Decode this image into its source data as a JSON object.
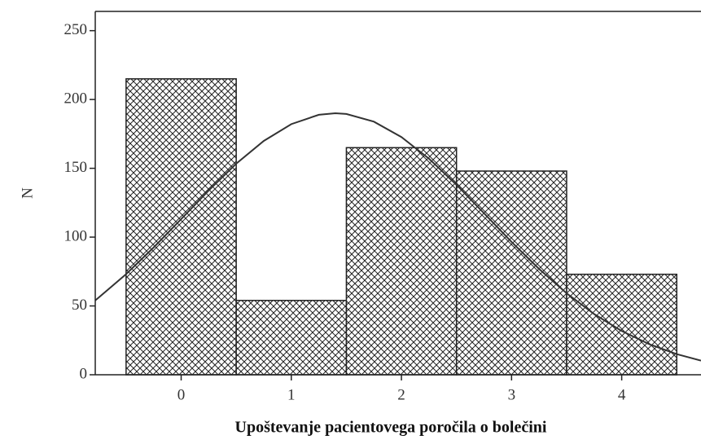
{
  "chart_data": {
    "type": "histogram",
    "xlabel": "Upoštevanje pacientovega poročila o bolečini",
    "ylabel": "N",
    "bins": [
      -0.5,
      0.5,
      1.5,
      2.5,
      3.5,
      4.5
    ],
    "values": [
      215,
      54,
      165,
      148,
      73
    ],
    "xlim": [
      -0.78,
      4.72
    ],
    "xticks": [
      0,
      1,
      2,
      3,
      4
    ],
    "ylim": [
      0,
      264
    ],
    "yticks": [
      0,
      50,
      100,
      150,
      200,
      250
    ],
    "color": "#222222",
    "curve": {
      "color": "#333333",
      "x": [
        -0.78,
        -0.75,
        -0.5,
        -0.25,
        0,
        0.25,
        0.5,
        0.75,
        1,
        1.25,
        1.4,
        1.5,
        1.75,
        2,
        2.25,
        2.5,
        2.75,
        3,
        3.25,
        3.5,
        3.75,
        4,
        4.25,
        4.5,
        4.72
      ],
      "values": [
        54.0,
        56.0,
        73.1,
        92.5,
        113.1,
        133.9,
        153.4,
        169.9,
        182.1,
        188.9,
        190,
        189.5,
        183.9,
        172.7,
        157.0,
        138.0,
        117.3,
        96.5,
        76.9,
        59.2,
        44.1,
        31.8,
        22.2,
        15.0,
        10.3
      ]
    }
  }
}
